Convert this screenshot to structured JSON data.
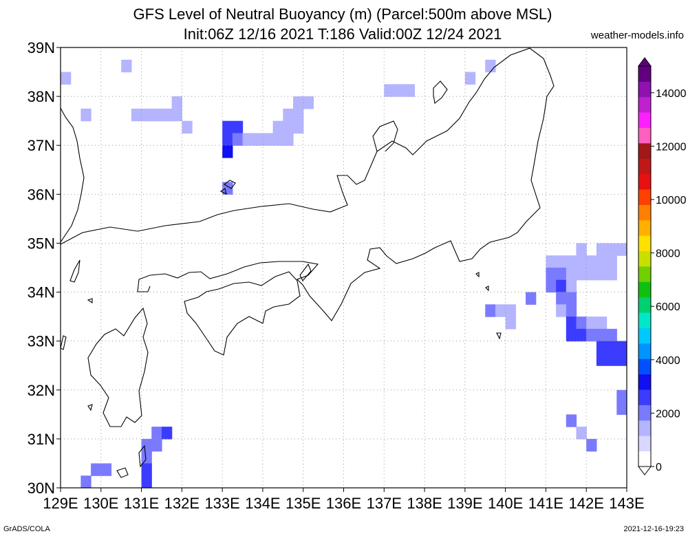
{
  "header": {
    "title": "GFS Level of Neutral Buoyancy (m) (Parcel:500m above MSL)",
    "subtitle": "Init:06Z 12/16 2021 T:186 Valid:00Z 12/24 2021",
    "site": "weather-models.info"
  },
  "footer": {
    "left": "GrADS/COLA",
    "right": "2021-12-16-19:23"
  },
  "map": {
    "lon_range": [
      129,
      143
    ],
    "lat_range": [
      30,
      39
    ],
    "lon_labels": [
      "129E",
      "130E",
      "131E",
      "132E",
      "133E",
      "134E",
      "135E",
      "136E",
      "137E",
      "138E",
      "139E",
      "140E",
      "141E",
      "142E",
      "143E"
    ],
    "lat_labels": [
      "30N",
      "31N",
      "32N",
      "33N",
      "34N",
      "35N",
      "36N",
      "37N",
      "38N",
      "39N"
    ],
    "grid": "dotted"
  },
  "colorbar": {
    "labels": [
      "0",
      "2000",
      "4000",
      "6000",
      "8000",
      "10000",
      "12000",
      "14000"
    ],
    "colors": [
      "#ffffff",
      "#d8d8ff",
      "#b4b4ff",
      "#7a7aff",
      "#3c3cff",
      "#1010f0",
      "#0050ff",
      "#0094ff",
      "#00c8ff",
      "#00e8c8",
      "#00d070",
      "#10c010",
      "#70d000",
      "#c8e000",
      "#ffe000",
      "#ffb000",
      "#ff8000",
      "#ff4000",
      "#e81010",
      "#c01818",
      "#a01818",
      "#ff60c0",
      "#ff20ff",
      "#c020d0",
      "#9010b0",
      "#600080"
    ]
  },
  "chart_data": {
    "type": "heatmap",
    "title": "GFS Level of Neutral Buoyancy (m) (Parcel:500m above MSL)",
    "units": "m",
    "grid_step_deg": 0.25,
    "cells": [
      [
        129.0,
        38.25,
        1500
      ],
      [
        129.5,
        37.5,
        1300
      ],
      [
        130.5,
        38.5,
        1500
      ],
      [
        130.75,
        37.5,
        1300
      ],
      [
        131.0,
        37.5,
        1300
      ],
      [
        131.25,
        37.5,
        1300
      ],
      [
        131.5,
        37.5,
        1300
      ],
      [
        131.75,
        37.75,
        1300
      ],
      [
        131.75,
        37.5,
        1300
      ],
      [
        132.0,
        37.25,
        1300
      ],
      [
        133.0,
        37.25,
        2800
      ],
      [
        133.0,
        37.0,
        2600
      ],
      [
        133.0,
        36.75,
        3000
      ],
      [
        133.25,
        37.25,
        2400
      ],
      [
        133.25,
        37.0,
        2000
      ],
      [
        133.5,
        37.0,
        1400
      ],
      [
        133.75,
        37.0,
        1300
      ],
      [
        134.0,
        37.0,
        1300
      ],
      [
        134.25,
        37.0,
        1300
      ],
      [
        134.5,
        37.0,
        1300
      ],
      [
        134.25,
        37.25,
        1400
      ],
      [
        134.5,
        37.5,
        1600
      ],
      [
        134.5,
        37.25,
        1500
      ],
      [
        134.75,
        37.5,
        1500
      ],
      [
        134.75,
        37.25,
        1400
      ],
      [
        134.75,
        37.75,
        1300
      ],
      [
        135.0,
        37.75,
        1300
      ],
      [
        133.0,
        36.0,
        2300
      ],
      [
        137.0,
        38.0,
        1400
      ],
      [
        137.25,
        38.0,
        1400
      ],
      [
        137.5,
        38.0,
        1400
      ],
      [
        139.0,
        38.25,
        1500
      ],
      [
        139.5,
        38.5,
        1600
      ],
      [
        140.5,
        33.75,
        1800
      ],
      [
        139.5,
        33.5,
        2000
      ],
      [
        139.75,
        33.5,
        1700
      ],
      [
        140.0,
        33.5,
        1300
      ],
      [
        140.0,
        33.25,
        1300
      ],
      [
        141.0,
        34.5,
        1400
      ],
      [
        141.0,
        34.25,
        2300
      ],
      [
        141.0,
        34.0,
        2300
      ],
      [
        141.25,
        34.5,
        1300
      ],
      [
        141.25,
        34.25,
        2000
      ],
      [
        141.25,
        34.0,
        2400
      ],
      [
        141.25,
        33.75,
        1800
      ],
      [
        141.25,
        33.5,
        1600
      ],
      [
        141.5,
        34.5,
        1300
      ],
      [
        141.5,
        34.25,
        1500
      ],
      [
        141.5,
        34.0,
        1700
      ],
      [
        141.5,
        33.75,
        2100
      ],
      [
        141.5,
        33.5,
        2000
      ],
      [
        141.5,
        33.25,
        2400
      ],
      [
        141.5,
        33.0,
        2500
      ],
      [
        141.75,
        34.75,
        1300
      ],
      [
        141.75,
        34.5,
        1300
      ],
      [
        141.75,
        34.25,
        1400
      ],
      [
        141.75,
        33.25,
        2300
      ],
      [
        141.75,
        33.0,
        2400
      ],
      [
        142.0,
        34.5,
        1300
      ],
      [
        142.0,
        34.25,
        1400
      ],
      [
        142.0,
        33.25,
        1600
      ],
      [
        142.0,
        33.0,
        1900
      ],
      [
        142.25,
        34.75,
        1300
      ],
      [
        142.25,
        34.5,
        1300
      ],
      [
        142.25,
        34.25,
        1400
      ],
      [
        142.25,
        33.25,
        1500
      ],
      [
        142.25,
        33.0,
        2000
      ],
      [
        142.25,
        32.75,
        2600
      ],
      [
        142.25,
        32.5,
        2400
      ],
      [
        142.5,
        34.75,
        1300
      ],
      [
        142.5,
        34.5,
        1300
      ],
      [
        142.5,
        34.25,
        1400
      ],
      [
        142.5,
        33.0,
        2200
      ],
      [
        142.5,
        32.75,
        2400
      ],
      [
        142.5,
        32.5,
        2500
      ],
      [
        142.75,
        34.75,
        1300
      ],
      [
        142.75,
        32.75,
        2400
      ],
      [
        142.75,
        32.5,
        2600
      ],
      [
        142.75,
        31.75,
        2000
      ],
      [
        142.75,
        31.5,
        2300
      ],
      [
        141.5,
        31.25,
        2300
      ],
      [
        141.75,
        31.0,
        1700
      ],
      [
        142.0,
        30.75,
        1900
      ],
      [
        131.0,
        30.75,
        2300
      ],
      [
        131.25,
        31.0,
        2300
      ],
      [
        131.5,
        31.0,
        2500
      ],
      [
        131.25,
        30.75,
        2200
      ],
      [
        131.0,
        30.5,
        2300
      ],
      [
        131.0,
        30.25,
        2500
      ],
      [
        131.0,
        30.0,
        2500
      ],
      [
        129.75,
        30.25,
        2000
      ],
      [
        130.0,
        30.25,
        2000
      ],
      [
        129.5,
        30.0,
        2000
      ]
    ]
  }
}
